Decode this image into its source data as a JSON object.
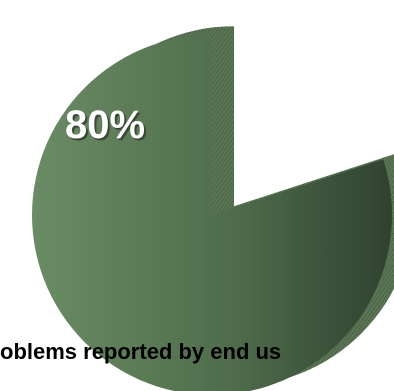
{
  "chart_data": {
    "type": "pie",
    "style": "3d-exploded",
    "slices": [
      {
        "label": "80%",
        "value": 80,
        "color": "#5f7f5a",
        "exploded": false
      },
      {
        "label": "",
        "value": 20,
        "color": "#ffffff",
        "exploded": false,
        "hidden": true
      }
    ],
    "caption": "oblems reported by end us",
    "legend": "none"
  }
}
